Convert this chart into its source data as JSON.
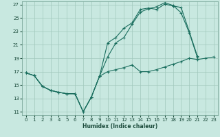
{
  "xlabel": "Humidex (Indice chaleur)",
  "xlim": [
    -0.5,
    23.5
  ],
  "ylim": [
    10.5,
    27.5
  ],
  "xticks": [
    0,
    1,
    2,
    3,
    4,
    5,
    6,
    7,
    8,
    9,
    10,
    11,
    12,
    13,
    14,
    15,
    16,
    17,
    18,
    19,
    20,
    21,
    22,
    23
  ],
  "yticks": [
    11,
    13,
    15,
    17,
    19,
    21,
    23,
    25,
    27
  ],
  "bg_color": "#c8e8e0",
  "line_color": "#1a6e5e",
  "grid_color": "#a0c8bc",
  "lines": [
    {
      "x": [
        0,
        1,
        2,
        3,
        4,
        5,
        6,
        7,
        8,
        9,
        10,
        11,
        12,
        13,
        14,
        15,
        16,
        17,
        18,
        19,
        20,
        21,
        22,
        23
      ],
      "y": [
        16.8,
        16.4,
        14.8,
        14.2,
        13.9,
        13.7,
        13.7,
        11.0,
        13.2,
        16.3,
        17.0,
        17.3,
        17.6,
        18.0,
        17.0,
        17.0,
        17.3,
        17.7,
        18.1,
        18.5,
        19.0,
        18.8,
        19.0,
        19.2
      ]
    },
    {
      "x": [
        0,
        1,
        2,
        3,
        4,
        5,
        6,
        7,
        8,
        9,
        10,
        11,
        12,
        13,
        14,
        15,
        16,
        17,
        18,
        19,
        20,
        21
      ],
      "y": [
        16.8,
        16.4,
        14.8,
        14.2,
        13.9,
        13.7,
        13.7,
        11.0,
        13.2,
        16.3,
        21.3,
        22.1,
        23.5,
        24.3,
        26.3,
        26.5,
        26.3,
        27.1,
        26.8,
        26.6,
        23.0,
        19.3
      ]
    },
    {
      "x": [
        0,
        1,
        2,
        3,
        4,
        5,
        6,
        7,
        8,
        9,
        10,
        11,
        12,
        13,
        14,
        15,
        16,
        17,
        18,
        19,
        20,
        21
      ],
      "y": [
        16.8,
        16.4,
        14.8,
        14.2,
        13.9,
        13.7,
        13.7,
        11.0,
        13.2,
        16.3,
        19.2,
        21.3,
        22.1,
        24.1,
        25.9,
        26.4,
        26.7,
        27.3,
        26.9,
        25.8,
        22.8,
        19.1
      ]
    }
  ]
}
